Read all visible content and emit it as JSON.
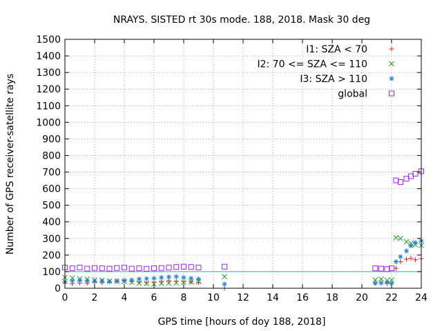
{
  "chart_data": {
    "type": "scatter",
    "title": "NRAYS. SISTED rt 30s mode. 188, 2018. Mask 30 deg",
    "xlabel": "GPS time [hours of doy 188, 2018]",
    "ylabel": "Number of GPS receiver-satellite rays",
    "xlim": [
      0,
      24
    ],
    "ylim": [
      0,
      1500
    ],
    "x_ticks": [
      0,
      2,
      4,
      6,
      8,
      10,
      12,
      14,
      16,
      18,
      20,
      22,
      24
    ],
    "y_ticks": [
      0,
      100,
      200,
      300,
      400,
      500,
      600,
      700,
      800,
      900,
      1000,
      1100,
      1200,
      1300,
      1400,
      1500
    ],
    "grid": true,
    "legend_position": "top-right",
    "reference_line": {
      "y": 100,
      "color": "#00c0c0"
    },
    "series": [
      {
        "name": "I1: SZA < 70",
        "marker": "+",
        "color": "#e02020",
        "points": [
          [
            0.0,
            30
          ],
          [
            0.5,
            28
          ],
          [
            1.0,
            32
          ],
          [
            1.5,
            30
          ],
          [
            2.0,
            35
          ],
          [
            2.5,
            33
          ],
          [
            3.0,
            38
          ],
          [
            3.5,
            40
          ],
          [
            4.0,
            45
          ],
          [
            4.5,
            40
          ],
          [
            5.0,
            38
          ],
          [
            5.5,
            35
          ],
          [
            6.0,
            38
          ],
          [
            6.5,
            42
          ],
          [
            7.0,
            45
          ],
          [
            7.5,
            42
          ],
          [
            8.0,
            40
          ],
          [
            8.5,
            38
          ],
          [
            9.0,
            35
          ],
          [
            10.75,
            0
          ],
          [
            20.9,
            30
          ],
          [
            21.3,
            32
          ],
          [
            21.7,
            28
          ],
          [
            22.0,
            30
          ],
          [
            22.3,
            120
          ],
          [
            22.6,
            160
          ],
          [
            23.0,
            175
          ],
          [
            23.3,
            180
          ],
          [
            23.6,
            172
          ],
          [
            24.0,
            178
          ]
        ]
      },
      {
        "name": "I2: 70 <= SZA <= 110",
        "marker": "x",
        "color": "#20a020",
        "points": [
          [
            0.0,
            65
          ],
          [
            0.5,
            62
          ],
          [
            1.0,
            58
          ],
          [
            1.5,
            55
          ],
          [
            2.0,
            50
          ],
          [
            2.5,
            48
          ],
          [
            3.0,
            45
          ],
          [
            3.5,
            42
          ],
          [
            4.0,
            40
          ],
          [
            4.5,
            35
          ],
          [
            5.0,
            30
          ],
          [
            5.5,
            28
          ],
          [
            6.0,
            25
          ],
          [
            6.5,
            28
          ],
          [
            7.0,
            30
          ],
          [
            7.5,
            32
          ],
          [
            8.0,
            35
          ],
          [
            8.5,
            38
          ],
          [
            9.0,
            40
          ],
          [
            10.75,
            70
          ],
          [
            20.9,
            50
          ],
          [
            21.3,
            55
          ],
          [
            21.7,
            48
          ],
          [
            22.0,
            50
          ],
          [
            22.3,
            305
          ],
          [
            22.6,
            300
          ],
          [
            23.0,
            280
          ],
          [
            23.3,
            270
          ],
          [
            23.6,
            262
          ],
          [
            24.0,
            258
          ]
        ]
      },
      {
        "name": "I3: SZA > 110",
        "marker": "*",
        "color": "#2080d0",
        "points": [
          [
            0.0,
            40
          ],
          [
            0.5,
            45
          ],
          [
            1.0,
            48
          ],
          [
            1.5,
            45
          ],
          [
            2.0,
            42
          ],
          [
            2.5,
            45
          ],
          [
            3.0,
            40
          ],
          [
            3.5,
            45
          ],
          [
            4.0,
            48
          ],
          [
            4.5,
            50
          ],
          [
            5.0,
            55
          ],
          [
            5.5,
            58
          ],
          [
            6.0,
            60
          ],
          [
            6.5,
            65
          ],
          [
            7.0,
            68
          ],
          [
            7.5,
            70
          ],
          [
            8.0,
            65
          ],
          [
            8.5,
            60
          ],
          [
            9.0,
            55
          ],
          [
            10.75,
            25
          ],
          [
            20.9,
            30
          ],
          [
            21.3,
            32
          ],
          [
            21.7,
            35
          ],
          [
            22.0,
            30
          ],
          [
            22.3,
            160
          ],
          [
            22.6,
            190
          ],
          [
            23.0,
            225
          ],
          [
            23.3,
            255
          ],
          [
            23.6,
            275
          ],
          [
            24.0,
            285
          ]
        ]
      },
      {
        "name": "global",
        "marker": "square",
        "color": "#a020f0",
        "points": [
          [
            0.0,
            125
          ],
          [
            0.5,
            120
          ],
          [
            1.0,
            125
          ],
          [
            1.5,
            118
          ],
          [
            2.0,
            122
          ],
          [
            2.5,
            120
          ],
          [
            3.0,
            118
          ],
          [
            3.5,
            122
          ],
          [
            4.0,
            125
          ],
          [
            4.5,
            118
          ],
          [
            5.0,
            120
          ],
          [
            5.5,
            117
          ],
          [
            6.0,
            120
          ],
          [
            6.5,
            122
          ],
          [
            7.0,
            125
          ],
          [
            7.5,
            128
          ],
          [
            8.0,
            130
          ],
          [
            8.5,
            128
          ],
          [
            9.0,
            125
          ],
          [
            10.75,
            130
          ],
          [
            20.9,
            120
          ],
          [
            21.3,
            118
          ],
          [
            21.7,
            115
          ],
          [
            22.0,
            120
          ],
          [
            22.3,
            650
          ],
          [
            22.6,
            640
          ],
          [
            23.0,
            660
          ],
          [
            23.3,
            675
          ],
          [
            23.6,
            690
          ],
          [
            24.0,
            705
          ]
        ]
      }
    ]
  }
}
